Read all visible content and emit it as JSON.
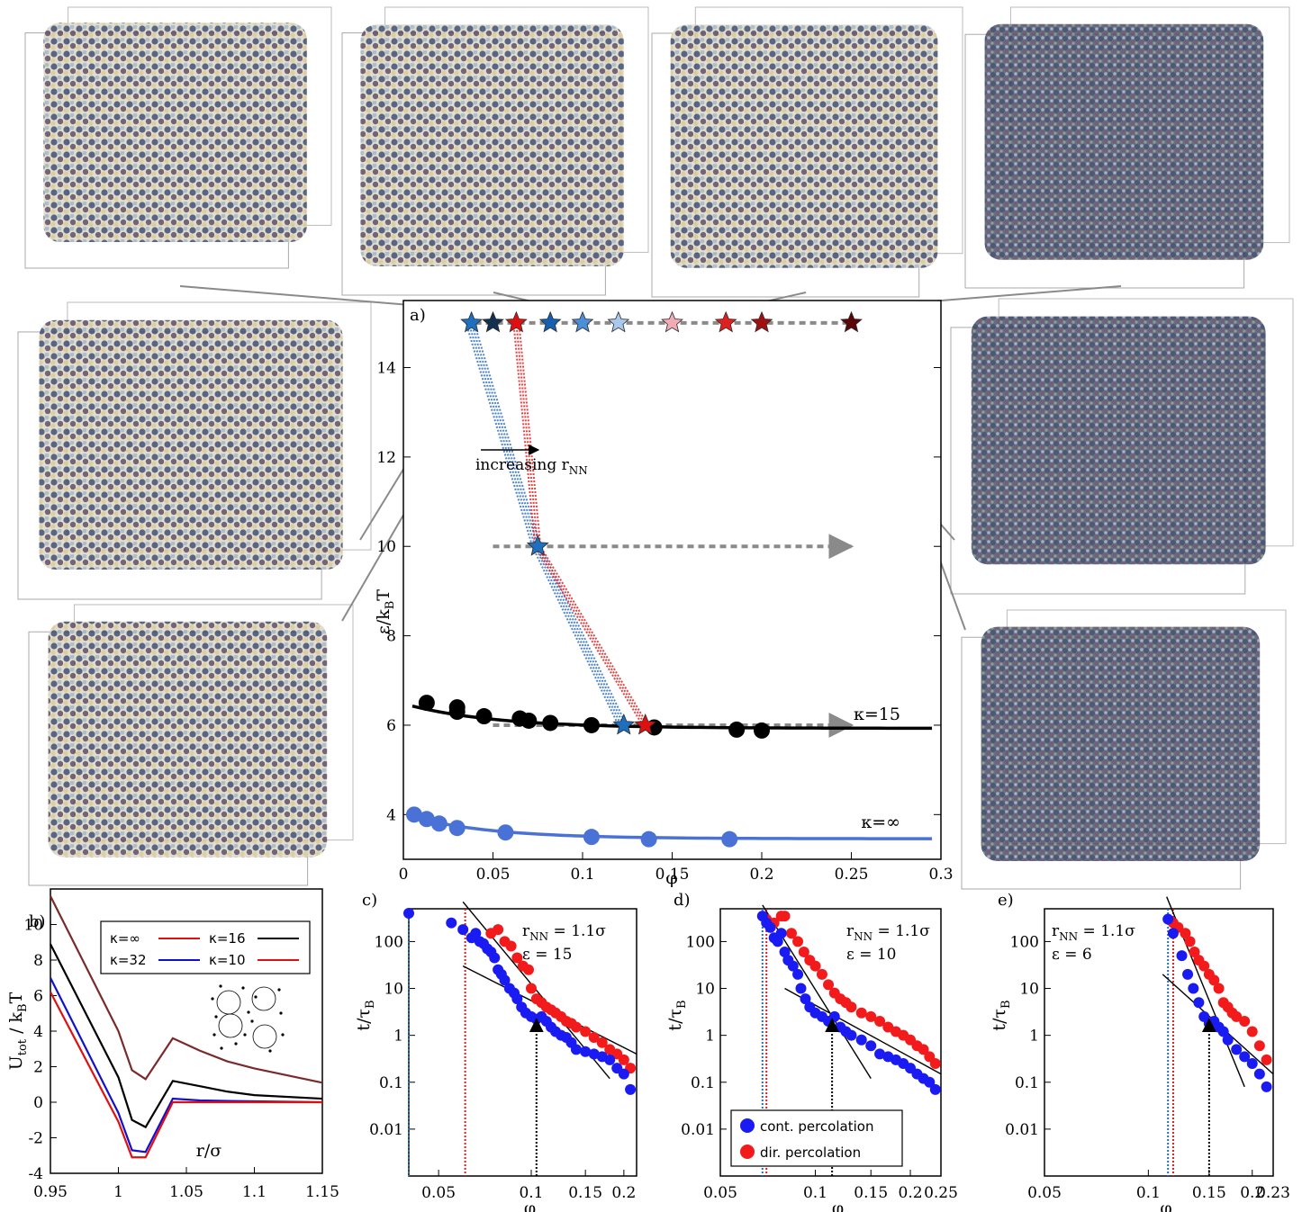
{
  "chart_data": [
    {
      "panel": "a)",
      "type": "scatter",
      "xlabel": "φ",
      "ylabel": "ε/k",
      "ylabel_sub": "B",
      "ylabel_tail": "T",
      "xlim": [
        0,
        0.3
      ],
      "ylim": [
        3,
        15.5
      ],
      "xticks": [
        "0",
        "0.05",
        "0.1",
        "0.15",
        "0.2",
        "0.25",
        "0.3"
      ],
      "yticks": [
        "4",
        "6",
        "8",
        "10",
        "12",
        "14"
      ],
      "annotation": "increasing r",
      "annotation_sub": "NN",
      "series": [
        {
          "name": "κ=15",
          "color": "#000000",
          "x": [
            0.013,
            0.03,
            0.03,
            0.045,
            0.065,
            0.07,
            0.082,
            0.105,
            0.14,
            0.186,
            0.2
          ],
          "y": [
            6.5,
            6.4,
            6.3,
            6.2,
            6.15,
            6.1,
            6.05,
            6.0,
            5.95,
            5.9,
            5.88
          ]
        },
        {
          "name": "κ=∞",
          "color": "#4a72d6",
          "x": [
            0.006,
            0.013,
            0.02,
            0.03,
            0.057,
            0.105,
            0.137,
            0.182
          ],
          "y": [
            4.0,
            3.9,
            3.8,
            3.7,
            3.6,
            3.5,
            3.45,
            3.45
          ]
        }
      ],
      "stars": [
        {
          "x": 0.038,
          "y": 15.0,
          "color": "#1f6fc0"
        },
        {
          "x": 0.05,
          "y": 15.0,
          "color": "#12304f"
        },
        {
          "x": 0.063,
          "y": 15.0,
          "color": "#e01010"
        },
        {
          "x": 0.082,
          "y": 15.0,
          "color": "#1560b0"
        },
        {
          "x": 0.1,
          "y": 15.0,
          "color": "#4a8fd8"
        },
        {
          "x": 0.12,
          "y": 15.0,
          "color": "#a9c8ec"
        },
        {
          "x": 0.15,
          "y": 15.0,
          "color": "#f2aab4"
        },
        {
          "x": 0.18,
          "y": 15.0,
          "color": "#e02020"
        },
        {
          "x": 0.2,
          "y": 15.0,
          "color": "#a01010"
        },
        {
          "x": 0.25,
          "y": 15.0,
          "color": "#5a0606"
        },
        {
          "x": 0.075,
          "y": 10.0,
          "color": "#1f6fc0"
        },
        {
          "x": 0.123,
          "y": 6.0,
          "color": "#1f6fc0"
        },
        {
          "x": 0.135,
          "y": 6.0,
          "color": "#e01010"
        }
      ],
      "curve_labels": [
        "κ=15",
        "κ=∞"
      ]
    },
    {
      "panel": "b)",
      "type": "line",
      "xlabel": "r/σ",
      "ylabel": "U",
      "ylabel_sub": "tot",
      "ylabel_tail": " / k",
      "ylabel_sub2": "B",
      "ylabel_tail2": "T",
      "xlim": [
        0.95,
        1.15
      ],
      "ylim": [
        -4,
        12
      ],
      "xticks": [
        "0.95",
        "1",
        "1.05",
        "1.1",
        "1.15"
      ],
      "yticks": [
        "-4",
        "-2",
        "0",
        "2",
        "4",
        "6",
        "8",
        "10"
      ],
      "series": [
        {
          "name": "κ=∞",
          "color": "#7a2a2a",
          "x": [
            0.95,
            1.0,
            1.01,
            1.02,
            1.04,
            1.06,
            1.08,
            1.1,
            1.15
          ],
          "y": [
            11.6,
            4.0,
            1.8,
            1.3,
            3.6,
            2.9,
            2.3,
            1.9,
            1.1
          ]
        },
        {
          "name": "κ=16",
          "color": "#000000",
          "x": [
            0.95,
            1.0,
            1.01,
            1.02,
            1.04,
            1.06,
            1.08,
            1.1,
            1.15
          ],
          "y": [
            8.9,
            1.4,
            -1.0,
            -1.4,
            1.2,
            0.9,
            0.6,
            0.4,
            0.2
          ]
        },
        {
          "name": "κ=32",
          "color": "#1010d0",
          "x": [
            0.95,
            1.0,
            1.01,
            1.02,
            1.04,
            1.06,
            1.1,
            1.15
          ],
          "y": [
            7.0,
            -0.6,
            -2.7,
            -2.8,
            0.2,
            0.1,
            0.05,
            0.0
          ]
        },
        {
          "name": "κ=10",
          "color": "#e01010",
          "x": [
            0.95,
            1.0,
            1.01,
            1.02,
            1.04,
            1.06,
            1.1,
            1.15
          ],
          "y": [
            6.2,
            -1.1,
            -3.1,
            -3.1,
            0.0,
            0.0,
            0.0,
            0.0
          ]
        }
      ],
      "legend": [
        "κ=∞",
        "κ=16",
        "κ=32",
        "κ=10"
      ]
    },
    {
      "panel": "c)",
      "type": "scatter",
      "log_x": true,
      "log_y": true,
      "xlabel": "φ",
      "ylabel": "t/τ",
      "ylabel_sub": "B",
      "xlim": [
        0.04,
        0.22
      ],
      "ylim": [
        0.001,
        500
      ],
      "xticks": [
        "0.05",
        "0.1",
        "0.15",
        "0.2"
      ],
      "yticks": [
        "0.01",
        "0.1",
        "1",
        "10",
        "100"
      ],
      "note1": "r",
      "note1_sub": "NN",
      "note1_tail": " = 1.1σ",
      "note2": "ε = 15",
      "blue_x": [
        0.04,
        0.055,
        0.06,
        0.064,
        0.066,
        0.068,
        0.07,
        0.072,
        0.074,
        0.076,
        0.078,
        0.08,
        0.082,
        0.085,
        0.088,
        0.09,
        0.093,
        0.096,
        0.1,
        0.104,
        0.108,
        0.112,
        0.116,
        0.12,
        0.125,
        0.13,
        0.135,
        0.14,
        0.15,
        0.16,
        0.17,
        0.18,
        0.19,
        0.2,
        0.21
      ],
      "blue_y": [
        400,
        250,
        180,
        120,
        150,
        100,
        90,
        70,
        60,
        45,
        25,
        20,
        15,
        10,
        8,
        6,
        4,
        3,
        2.5,
        2.2,
        2.5,
        2.0,
        1.5,
        1.2,
        1.0,
        0.9,
        0.7,
        0.5,
        0.45,
        0.4,
        0.35,
        0.3,
        0.2,
        0.15,
        0.07
      ],
      "red_x": [
        0.074,
        0.078,
        0.082,
        0.086,
        0.09,
        0.094,
        0.098,
        0.1,
        0.104,
        0.108,
        0.112,
        0.116,
        0.12,
        0.125,
        0.13,
        0.135,
        0.14,
        0.15,
        0.16,
        0.17,
        0.18,
        0.19,
        0.2,
        0.21
      ],
      "red_y": [
        150,
        180,
        100,
        80,
        45,
        30,
        25,
        10,
        6,
        5,
        4,
        3.5,
        3,
        2.5,
        2,
        1.8,
        1.5,
        1.2,
        0.9,
        0.7,
        0.5,
        0.4,
        0.3,
        0.2
      ],
      "vline_blue": 0.04,
      "vline_red": 0.061,
      "arrow_x": 0.104,
      "fit1": [
        [
          0.06,
          700
        ],
        [
          0.18,
          0.12
        ]
      ],
      "fit2": [
        [
          0.06,
          30
        ],
        [
          0.22,
          0.4
        ]
      ]
    },
    {
      "panel": "d)",
      "type": "scatter",
      "log_x": true,
      "log_y": true,
      "xlabel": "φ",
      "ylabel": "t/τ",
      "ylabel_sub": "B",
      "xlim": [
        0.05,
        0.25
      ],
      "ylim": [
        0.001,
        500
      ],
      "xticks": [
        "0.05",
        "0.1",
        "0.15",
        "0.2",
        "0.25"
      ],
      "yticks": [
        "0.01",
        "0.1",
        "1",
        "10",
        "100"
      ],
      "note1": "r",
      "note1_sub": "NN",
      "note1_tail": " = 1.1σ",
      "note2": "ε = 10",
      "legend": [
        "cont. percolation",
        "dir. percolation"
      ],
      "blue_x": [
        0.068,
        0.07,
        0.072,
        0.074,
        0.076,
        0.078,
        0.08,
        0.082,
        0.085,
        0.088,
        0.09,
        0.093,
        0.096,
        0.1,
        0.105,
        0.11,
        0.115,
        0.12,
        0.125,
        0.13,
        0.14,
        0.15,
        0.16,
        0.17,
        0.18,
        0.19,
        0.2,
        0.21,
        0.22,
        0.23,
        0.24
      ],
      "blue_y": [
        350,
        250,
        200,
        120,
        100,
        150,
        60,
        40,
        30,
        20,
        10,
        6,
        4,
        3,
        2.5,
        2,
        2.5,
        1.5,
        1.2,
        1.0,
        0.8,
        0.6,
        0.4,
        0.35,
        0.3,
        0.25,
        0.2,
        0.15,
        0.12,
        0.1,
        0.07
      ],
      "red_x": [
        0.07,
        0.074,
        0.078,
        0.08,
        0.084,
        0.088,
        0.092,
        0.096,
        0.1,
        0.105,
        0.11,
        0.115,
        0.12,
        0.125,
        0.13,
        0.14,
        0.15,
        0.16,
        0.17,
        0.18,
        0.19,
        0.2,
        0.21,
        0.22,
        0.23,
        0.24
      ],
      "red_y": [
        300,
        250,
        350,
        350,
        150,
        100,
        60,
        40,
        30,
        20,
        12,
        8,
        6,
        5,
        4,
        3,
        2.5,
        2,
        1.5,
        1.2,
        1.0,
        0.8,
        0.6,
        0.5,
        0.35,
        0.25
      ],
      "vline_blue": 0.068,
      "vline_red": 0.07,
      "arrow_x": 0.113,
      "fit1": [
        [
          0.068,
          600
        ],
        [
          0.15,
          0.12
        ]
      ],
      "fit2": [
        [
          0.08,
          10
        ],
        [
          0.25,
          0.15
        ]
      ]
    },
    {
      "panel": "e)",
      "type": "scatter",
      "log_x": true,
      "log_y": true,
      "xlabel": "φ",
      "ylabel": "t/τ",
      "ylabel_sub": "B",
      "xlim": [
        0.05,
        0.23
      ],
      "ylim": [
        0.001,
        500
      ],
      "xticks": [
        "0.05",
        "0.1",
        "0.15",
        "0.2",
        "0.23"
      ],
      "yticks": [
        "0.01",
        "0.1",
        "1",
        "10",
        "100"
      ],
      "note1": "r",
      "note1_sub": "NN",
      "note1_tail": " = 1.1σ",
      "note2": "ε = 6",
      "blue_x": [
        0.114,
        0.118,
        0.125,
        0.13,
        0.135,
        0.14,
        0.145,
        0.15,
        0.155,
        0.16,
        0.165,
        0.17,
        0.18,
        0.19,
        0.2,
        0.21,
        0.22
      ],
      "blue_y": [
        300,
        150,
        50,
        20,
        10,
        5,
        2.5,
        1.8,
        2,
        1.5,
        1.2,
        0.8,
        0.5,
        0.35,
        0.25,
        0.15,
        0.08
      ],
      "red_x": [
        0.118,
        0.122,
        0.128,
        0.132,
        0.136,
        0.14,
        0.145,
        0.15,
        0.155,
        0.16,
        0.165,
        0.17,
        0.175,
        0.18,
        0.19,
        0.2,
        0.21,
        0.22
      ],
      "red_y": [
        250,
        200,
        150,
        100,
        60,
        40,
        30,
        20,
        15,
        10,
        5,
        4,
        3,
        2.5,
        2,
        1.2,
        0.6,
        0.3
      ],
      "vline_blue": 0.114,
      "vline_red": 0.118,
      "arrow_x": 0.15,
      "fit1": [
        [
          0.113,
          900
        ],
        [
          0.19,
          0.08
        ]
      ],
      "fit2": [
        [
          0.11,
          20
        ],
        [
          0.23,
          0.15
        ]
      ]
    }
  ]
}
